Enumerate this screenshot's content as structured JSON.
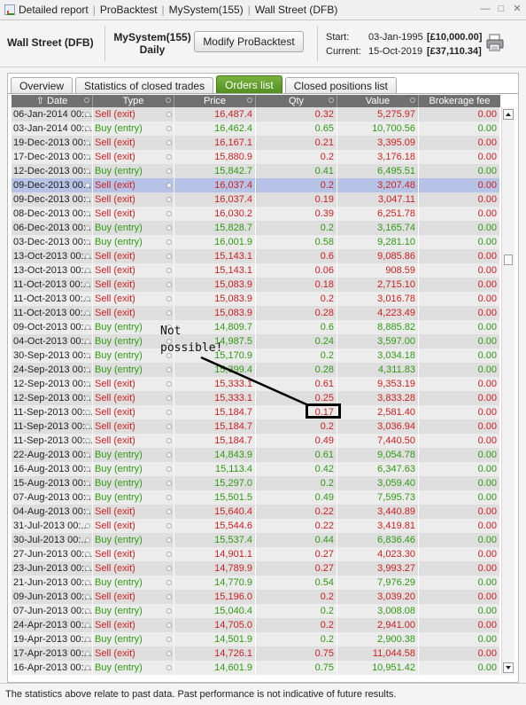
{
  "titlebar": {
    "breadcrumbs": [
      "Detailed report",
      "ProBacktest",
      "MySystem(155)",
      "Wall Street (DFB)"
    ]
  },
  "header": {
    "instrument": "Wall Street (DFB)",
    "system_name": "MySystem(155)",
    "timeframe": "Daily",
    "modify_button": "Modify ProBacktest",
    "start_label": "Start:",
    "start_date": "03-Jan-1995",
    "start_capital": "[£10,000.00]",
    "current_label": "Current:",
    "current_date": "15-Oct-2019",
    "current_capital": "[£37,110.34]"
  },
  "tabs": [
    {
      "label": "Overview",
      "active": false
    },
    {
      "label": "Statistics of closed trades",
      "active": false
    },
    {
      "label": "Orders list",
      "active": true
    },
    {
      "label": "Closed positions list",
      "active": false
    }
  ],
  "columns": [
    "Date",
    "Type",
    "Price",
    "Qty",
    "Value",
    "Brokerage fee"
  ],
  "sort_icon": "sort-up-icon",
  "colors": {
    "sell": "#cc1f1f",
    "buy": "#2f9a13",
    "selected_row": "#b6c3e6",
    "active_tab": "#5e9d28"
  },
  "rows": [
    {
      "date": "06-Jan-2014 00:...",
      "type": "Sell (exit)",
      "price": "16,487.4",
      "qty": "0.32",
      "value": "5,275.97",
      "fee": "0.00"
    },
    {
      "date": "03-Jan-2014 00:...",
      "type": "Buy (entry)",
      "price": "16,462.4",
      "qty": "0.65",
      "value": "10,700.56",
      "fee": "0.00"
    },
    {
      "date": "19-Dec-2013 00:...",
      "type": "Sell (exit)",
      "price": "16,167.1",
      "qty": "0.21",
      "value": "3,395.09",
      "fee": "0.00"
    },
    {
      "date": "17-Dec-2013 00:...",
      "type": "Sell (exit)",
      "price": "15,880.9",
      "qty": "0.2",
      "value": "3,176.18",
      "fee": "0.00"
    },
    {
      "date": "12-Dec-2013 00:...",
      "type": "Buy (entry)",
      "price": "15,842.7",
      "qty": "0.41",
      "value": "6,495.51",
      "fee": "0.00"
    },
    {
      "date": "09-Dec-2013 00...",
      "type": "Sell (exit)",
      "price": "16,037.4",
      "qty": "0.2",
      "value": "3,207.48",
      "fee": "0.00",
      "selected": true
    },
    {
      "date": "09-Dec-2013 00:...",
      "type": "Sell (exit)",
      "price": "16,037.4",
      "qty": "0.19",
      "value": "3,047.11",
      "fee": "0.00"
    },
    {
      "date": "08-Dec-2013 00:...",
      "type": "Sell (exit)",
      "price": "16,030.2",
      "qty": "0.39",
      "value": "6,251.78",
      "fee": "0.00"
    },
    {
      "date": "06-Dec-2013 00:...",
      "type": "Buy (entry)",
      "price": "15,828.7",
      "qty": "0.2",
      "value": "3,165.74",
      "fee": "0.00"
    },
    {
      "date": "03-Dec-2013 00:...",
      "type": "Buy (entry)",
      "price": "16,001.9",
      "qty": "0.58",
      "value": "9,281.10",
      "fee": "0.00"
    },
    {
      "date": "13-Oct-2013 00:...",
      "type": "Sell (exit)",
      "price": "15,143.1",
      "qty": "0.6",
      "value": "9,085.86",
      "fee": "0.00"
    },
    {
      "date": "13-Oct-2013 00:...",
      "type": "Sell (exit)",
      "price": "15,143.1",
      "qty": "0.06",
      "value": "908.59",
      "fee": "0.00"
    },
    {
      "date": "11-Oct-2013 00:...",
      "type": "Sell (exit)",
      "price": "15,083.9",
      "qty": "0.18",
      "value": "2,715.10",
      "fee": "0.00"
    },
    {
      "date": "11-Oct-2013 00:...",
      "type": "Sell (exit)",
      "price": "15,083.9",
      "qty": "0.2",
      "value": "3,016.78",
      "fee": "0.00"
    },
    {
      "date": "11-Oct-2013 00:...",
      "type": "Sell (exit)",
      "price": "15,083.9",
      "qty": "0.28",
      "value": "4,223.49",
      "fee": "0.00"
    },
    {
      "date": "09-Oct-2013 00:...",
      "type": "Buy (entry)",
      "price": "14,809.7",
      "qty": "0.6",
      "value": "8,885.82",
      "fee": "0.00"
    },
    {
      "date": "04-Oct-2013 00:...",
      "type": "Buy (entry)",
      "price": "14,987.5",
      "qty": "0.24",
      "value": "3,597.00",
      "fee": "0.00"
    },
    {
      "date": "30-Sep-2013 00:...",
      "type": "Buy (entry)",
      "price": "15,170.9",
      "qty": "0.2",
      "value": "3,034.18",
      "fee": "0.00"
    },
    {
      "date": "24-Sep-2013 00:...",
      "type": "Buy (entry)",
      "price": "15,399.4",
      "qty": "0.28",
      "value": "4,311.83",
      "fee": "0.00"
    },
    {
      "date": "12-Sep-2013 00:...",
      "type": "Sell (exit)",
      "price": "15,333.1",
      "qty": "0.61",
      "value": "9,353.19",
      "fee": "0.00"
    },
    {
      "date": "12-Sep-2013 00:...",
      "type": "Sell (exit)",
      "price": "15,333.1",
      "qty": "0.25",
      "value": "3,833.28",
      "fee": "0.00"
    },
    {
      "date": "11-Sep-2013 00:...",
      "type": "Sell (exit)",
      "price": "15,184.7",
      "qty": "0.17",
      "value": "2,581.40",
      "fee": "0.00"
    },
    {
      "date": "11-Sep-2013 00:...",
      "type": "Sell (exit)",
      "price": "15,184.7",
      "qty": "0.2",
      "value": "3,036.94",
      "fee": "0.00"
    },
    {
      "date": "11-Sep-2013 00:...",
      "type": "Sell (exit)",
      "price": "15,184.7",
      "qty": "0.49",
      "value": "7,440.50",
      "fee": "0.00"
    },
    {
      "date": "22-Aug-2013 00:...",
      "type": "Buy (entry)",
      "price": "14,843.9",
      "qty": "0.61",
      "value": "9,054.78",
      "fee": "0.00"
    },
    {
      "date": "16-Aug-2013 00:...",
      "type": "Buy (entry)",
      "price": "15,113.4",
      "qty": "0.42",
      "value": "6,347.63",
      "fee": "0.00"
    },
    {
      "date": "15-Aug-2013 00:...",
      "type": "Buy (entry)",
      "price": "15,297.0",
      "qty": "0.2",
      "value": "3,059.40",
      "fee": "0.00"
    },
    {
      "date": "07-Aug-2013 00:...",
      "type": "Buy (entry)",
      "price": "15,501.5",
      "qty": "0.49",
      "value": "7,595.73",
      "fee": "0.00"
    },
    {
      "date": "04-Aug-2013 00:...",
      "type": "Sell (exit)",
      "price": "15,640.4",
      "qty": "0.22",
      "value": "3,440.89",
      "fee": "0.00"
    },
    {
      "date": "31-Jul-2013 00:...",
      "type": "Sell (exit)",
      "price": "15,544.6",
      "qty": "0.22",
      "value": "3,419.81",
      "fee": "0.00"
    },
    {
      "date": "30-Jul-2013 00:...",
      "type": "Buy (entry)",
      "price": "15,537.4",
      "qty": "0.44",
      "value": "6,836.46",
      "fee": "0.00"
    },
    {
      "date": "27-Jun-2013 00:...",
      "type": "Sell (exit)",
      "price": "14,901.1",
      "qty": "0.27",
      "value": "4,023.30",
      "fee": "0.00"
    },
    {
      "date": "23-Jun-2013 00:...",
      "type": "Sell (exit)",
      "price": "14,789.9",
      "qty": "0.27",
      "value": "3,993.27",
      "fee": "0.00"
    },
    {
      "date": "21-Jun-2013 00:...",
      "type": "Buy (entry)",
      "price": "14,770.9",
      "qty": "0.54",
      "value": "7,976.29",
      "fee": "0.00"
    },
    {
      "date": "09-Jun-2013 00:...",
      "type": "Sell (exit)",
      "price": "15,196.0",
      "qty": "0.2",
      "value": "3,039.20",
      "fee": "0.00"
    },
    {
      "date": "07-Jun-2013 00:...",
      "type": "Buy (entry)",
      "price": "15,040.4",
      "qty": "0.2",
      "value": "3,008.08",
      "fee": "0.00"
    },
    {
      "date": "24-Apr-2013 00:...",
      "type": "Sell (exit)",
      "price": "14,705.0",
      "qty": "0.2",
      "value": "2,941.00",
      "fee": "0.00"
    },
    {
      "date": "19-Apr-2013 00:...",
      "type": "Buy (entry)",
      "price": "14,501.9",
      "qty": "0.2",
      "value": "2,900.38",
      "fee": "0.00"
    },
    {
      "date": "17-Apr-2013 00:...",
      "type": "Sell (exit)",
      "price": "14,726.1",
      "qty": "0.75",
      "value": "11,044.58",
      "fee": "0.00"
    },
    {
      "date": "16-Apr-2013 00:...",
      "type": "Buy (entry)",
      "price": "14,601.9",
      "qty": "0.75",
      "value": "10,951.42",
      "fee": "0.00"
    }
  ],
  "annotation": {
    "line1": "Not",
    "line2": "possible!"
  },
  "footer": "The statistics above relate to past data. Past performance is not indicative of future results."
}
